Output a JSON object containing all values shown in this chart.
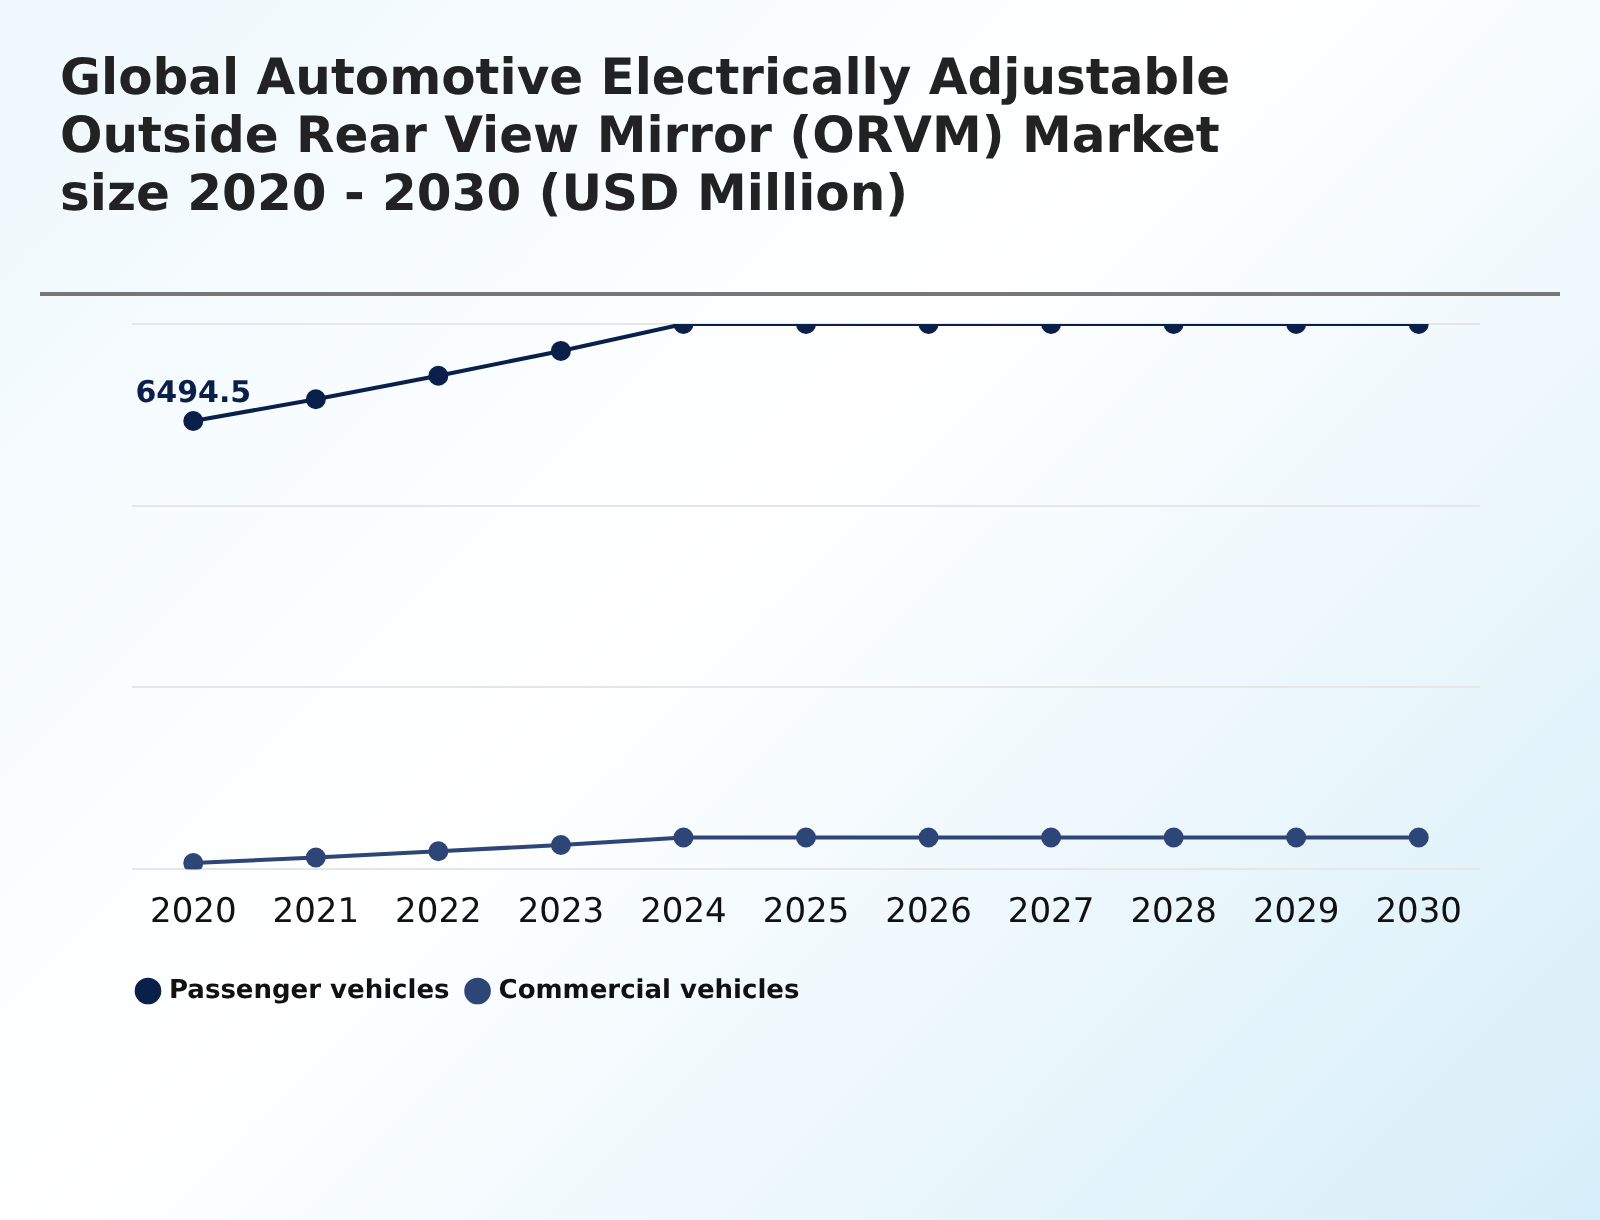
{
  "chart_data": {
    "type": "line",
    "title": "Global Automotive Electrically Adjustable Outside Rear View Mirror (ORVM) Market size 2020 - 2030 (USD Million)",
    "categories": [
      "2020",
      "2021",
      "2022",
      "2023",
      "2024",
      "2025",
      "2026",
      "2027",
      "2028",
      "2029",
      "2030"
    ],
    "ylim": [
      0,
      7900
    ],
    "yticks": [
      {
        "value": 0,
        "label": null
      },
      {
        "value": 2633,
        "label": null
      },
      {
        "value": 5267,
        "label": null
      },
      {
        "value": 7900,
        "label": null
      }
    ],
    "tick_labels": "x",
    "grid": "y",
    "legend": "bottom left",
    "marker": "circle",
    "line_style": "solid",
    "series": [
      {
        "name": "Passenger vehicles",
        "color": "#0b1f4b",
        "values": [
          6494.5,
          6810,
          7150,
          7510,
          7900,
          7900,
          7900,
          7900,
          7900,
          7900,
          7900
        ],
        "value_labels": [
          "6494.5",
          null,
          null,
          null,
          null,
          null,
          null,
          null,
          null,
          null,
          null
        ]
      },
      {
        "name": "Commercial vehicles",
        "color": "#2e4577",
        "values": [
          90,
          170,
          260,
          350,
          460,
          460,
          460,
          460,
          460,
          460,
          460
        ]
      }
    ]
  }
}
